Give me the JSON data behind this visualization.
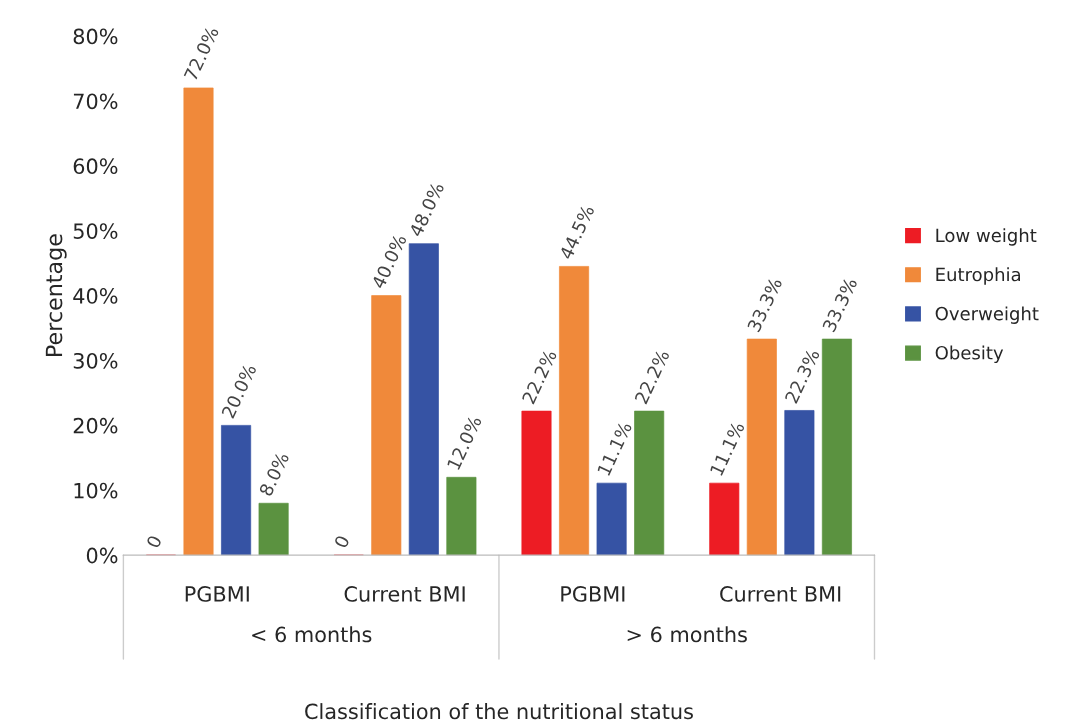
{
  "chart_data": {
    "type": "bar",
    "xlabel": "Classification of the nutritional status",
    "ylabel": "Percentage",
    "categories": [
      "PGBMI",
      "Current BMI",
      "PGBMI",
      "Current BMI"
    ],
    "series": [
      {
        "name": "Low weight",
        "color": "#ed1c24",
        "values": [
          0,
          0,
          22.2,
          11.1
        ],
        "value_labels": [
          "0",
          "0",
          "22.2%",
          "11.1%"
        ]
      },
      {
        "name": "Eutrophia",
        "color": "#f0893a",
        "values": [
          72.0,
          40.0,
          44.5,
          33.3
        ],
        "value_labels": [
          "72.0%",
          "40.0%",
          "44.5%",
          "33.3%"
        ]
      },
      {
        "name": "Overweight",
        "color": "#3653a4",
        "values": [
          20.0,
          48.0,
          11.1,
          22.3
        ],
        "value_labels": [
          "20.0%",
          "48.0%",
          "11.1%",
          "22.3%"
        ]
      },
      {
        "name": "Obesity",
        "color": "#5b9240",
        "values": [
          8.0,
          12.0,
          22.2,
          33.3
        ],
        "value_labels": [
          "8.0%",
          "12.0%",
          "22.2%",
          "33.3%"
        ]
      }
    ],
    "ylim": [
      0,
      80
    ],
    "yticks": [
      {
        "value": 0,
        "label": "0%"
      },
      {
        "value": 10,
        "label": "10%"
      },
      {
        "value": 20,
        "label": "20%"
      },
      {
        "value": 30,
        "label": "30%"
      },
      {
        "value": 40,
        "label": "40%"
      },
      {
        "value": 50,
        "label": "50%"
      },
      {
        "value": 60,
        "label": "60%"
      },
      {
        "value": 70,
        "label": "70%"
      },
      {
        "value": 80,
        "label": "80%"
      }
    ],
    "annotations": [
      "< 6 months",
      "> 6 months"
    ],
    "grid": false,
    "legend": "right"
  }
}
